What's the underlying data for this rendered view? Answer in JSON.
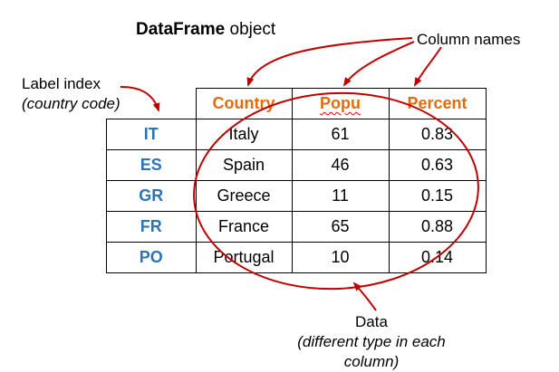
{
  "title": {
    "bold": "DataFrame",
    "rest": " object"
  },
  "annotations": {
    "column_names": "Column names",
    "label_index": "Label index",
    "label_index_sub": "(country code)",
    "data": "Data",
    "data_sub": "(different type in each column)"
  },
  "table": {
    "columns": [
      "Country",
      "Popu",
      "Percent"
    ],
    "rows": [
      {
        "index": "IT",
        "country": "Italy",
        "popu": "61",
        "percent": "0.83"
      },
      {
        "index": "ES",
        "country": "Spain",
        "popu": "46",
        "percent": "0.63"
      },
      {
        "index": "GR",
        "country": "Greece",
        "popu": "11",
        "percent": "0.15"
      },
      {
        "index": "FR",
        "country": "France",
        "popu": "65",
        "percent": "0.88"
      },
      {
        "index": "PO",
        "country": "Portugal",
        "popu": "10",
        "percent": "0.14"
      }
    ]
  },
  "colors": {
    "header": "#E36C0A",
    "index": "#2E74B5",
    "annotation_red": "#C00000",
    "spell_squiggle": "#FF0000"
  }
}
